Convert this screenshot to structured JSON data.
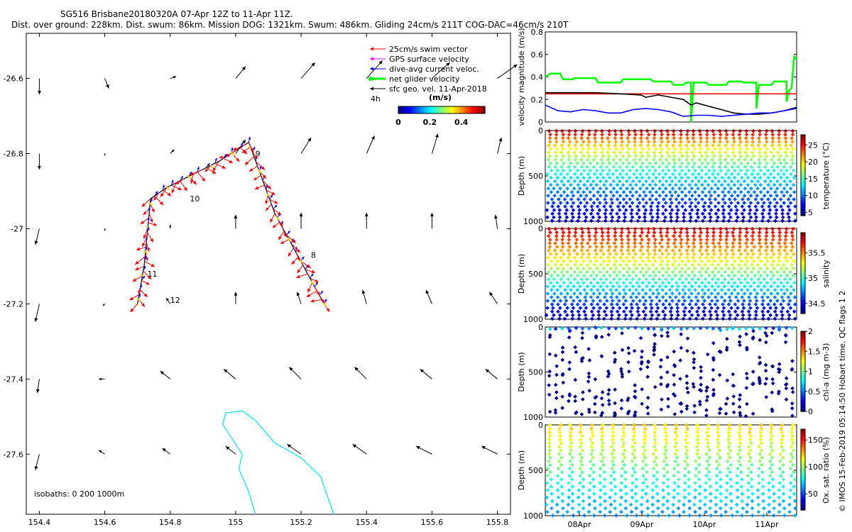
{
  "title": {
    "line1": "SG516 Brisbane20180320A 07-Apr 12Z to 11-Apr 11Z.",
    "line2": "Dist. over ground: 228km. Dist. swum: 86km. Mission DOG: 1321km. Swum: 486km. Gliding 24cm/s 211T COG-DAC=46cm/s 210T"
  },
  "side_note": "© IMOS 15-Feb-2019 05:14:50 Hobart time. QC flags 1  2",
  "chart_data": [
    {
      "id": "map",
      "type": "scatter",
      "xlim": [
        154.36,
        155.84
      ],
      "ylim": [
        -27.76,
        -26.48
      ],
      "xticks": [
        154.4,
        154.6,
        154.8,
        155,
        155.2,
        155.4,
        155.6,
        155.8
      ],
      "yticks": [
        -26.6,
        -26.8,
        -27,
        -27.2,
        -27.4,
        -27.6
      ],
      "xtick_labels": [
        "154.4",
        "154.6",
        "154.8",
        "155",
        "155.2",
        "155.4",
        "155.6",
        "155.8"
      ],
      "ytick_labels": [
        "-26.6",
        "-26.8",
        "-27",
        "-27.2",
        "-27.4",
        "-27.6"
      ],
      "legend": {
        "entries": [
          {
            "label": "25cm/s swim vector",
            "color": "#ff0000"
          },
          {
            "label": "GPS surface velocity",
            "color": "#ff00ff"
          },
          {
            "label": "dive-avg current veloc.",
            "color": "#0000ff"
          },
          {
            "label": "net glider velocity",
            "color": "#00ff00"
          },
          {
            "label": "sfc geo. vel. 11-Apr-2018",
            "color": "#000000"
          }
        ],
        "extra": "4h",
        "colorbar_title": "(m/s)",
        "colorbar_ticks": [
          "0",
          "0.2",
          "0.4"
        ],
        "colorbar_range": [
          0,
          0.55
        ]
      },
      "isobath_note": "isobaths: 0   200  1000m",
      "track_labels": [
        {
          "text": "9",
          "lon": 155.06,
          "lat": -26.8
        },
        {
          "text": "10",
          "lon": 154.86,
          "lat": -26.92
        },
        {
          "text": "8",
          "lon": 155.23,
          "lat": -27.07
        },
        {
          "text": "11",
          "lon": 154.73,
          "lat": -27.12
        },
        {
          "text": "12",
          "lon": 154.8,
          "lat": -27.19
        }
      ],
      "track": [
        {
          "lon": 155.27,
          "lat": -27.2
        },
        {
          "lon": 155.12,
          "lat": -26.96
        },
        {
          "lon": 155.04,
          "lat": -26.77
        },
        {
          "lon": 154.95,
          "lat": -26.82
        },
        {
          "lon": 154.79,
          "lat": -26.89
        },
        {
          "lon": 154.74,
          "lat": -26.92
        },
        {
          "lon": 154.72,
          "lat": -27.1
        },
        {
          "lon": 154.7,
          "lat": -27.2
        }
      ],
      "geo_vectors": {
        "lons": [
          154.4,
          154.6,
          154.8,
          155.0,
          155.2,
          155.4,
          155.6,
          155.8
        ],
        "lats": [
          -26.6,
          -26.8,
          -27.0,
          -27.2,
          -27.4,
          -27.6
        ],
        "u": [
          [
            0.0,
            0.02,
            0.03,
            0.05,
            0.07,
            0.08,
            0.09,
            0.1
          ],
          [
            0.0,
            0.0,
            0.02,
            0.05,
            0.05,
            0.04,
            0.03,
            0.02
          ],
          [
            -0.02,
            0.0,
            0.0,
            0.0,
            0.0,
            0.0,
            0.0,
            -0.01
          ],
          [
            -0.02,
            -0.01,
            -0.02,
            0.0,
            -0.02,
            -0.02,
            -0.03,
            -0.04
          ],
          [
            -0.01,
            -0.03,
            -0.05,
            -0.06,
            -0.06,
            -0.06,
            -0.06,
            -0.06
          ],
          [
            -0.02,
            -0.03,
            -0.04,
            -0.05,
            -0.07,
            -0.07,
            -0.08,
            -0.08
          ]
        ],
        "v": [
          [
            -0.08,
            -0.05,
            0.01,
            0.06,
            0.08,
            0.09,
            0.08,
            0.07
          ],
          [
            -0.08,
            -0.01,
            0.02,
            0.07,
            0.08,
            0.09,
            0.1,
            0.08
          ],
          [
            -0.08,
            -0.01,
            0.02,
            0.07,
            0.08,
            0.08,
            0.08,
            0.07
          ],
          [
            -0.09,
            -0.01,
            0.03,
            0.06,
            0.06,
            0.07,
            0.07,
            0.06
          ],
          [
            -0.07,
            0.0,
            0.04,
            0.05,
            0.06,
            0.06,
            0.05,
            0.05
          ],
          [
            -0.08,
            0.02,
            0.03,
            0.04,
            0.05,
            0.05,
            0.04,
            0.04
          ]
        ]
      },
      "isobath_1000m": [
        {
          "lon": 155.3,
          "lat": -27.76
        },
        {
          "lon": 155.26,
          "lat": -27.66
        },
        {
          "lon": 155.2,
          "lat": -27.61
        },
        {
          "lon": 155.12,
          "lat": -27.57
        },
        {
          "lon": 155.06,
          "lat": -27.51
        },
        {
          "lon": 155.02,
          "lat": -27.485
        },
        {
          "lon": 154.97,
          "lat": -27.49
        },
        {
          "lon": 154.96,
          "lat": -27.52
        },
        {
          "lon": 154.99,
          "lat": -27.56
        },
        {
          "lon": 155.02,
          "lat": -27.6
        },
        {
          "lon": 155.01,
          "lat": -27.64
        },
        {
          "lon": 155.04,
          "lat": -27.7
        },
        {
          "lon": 155.06,
          "lat": -27.76
        }
      ]
    },
    {
      "id": "velocity",
      "type": "line",
      "ylabel": "velocity magnitude (m/s)",
      "ylim": [
        0,
        0.8
      ],
      "yticks": [
        0,
        0.2,
        0.4,
        0.6,
        0.8
      ],
      "ytick_labels": [
        "0",
        "0.2",
        "0.4",
        "0.6",
        "0.8"
      ],
      "xlim": [
        0,
        1
      ],
      "series": [
        {
          "name": "net glider velocity",
          "color": "#00ff00",
          "x": [
            0,
            0.02,
            0.06,
            0.07,
            0.11,
            0.115,
            0.2,
            0.21,
            0.3,
            0.31,
            0.42,
            0.43,
            0.5,
            0.51,
            0.55,
            0.56,
            0.58,
            0.58,
            0.59,
            0.64,
            0.65,
            0.72,
            0.73,
            0.78,
            0.79,
            0.84,
            0.84,
            0.85,
            0.9,
            0.91,
            0.96,
            0.96,
            0.97,
            0.98,
            0.99,
            1.0
          ],
          "values": [
            0.4,
            0.43,
            0.43,
            0.38,
            0.38,
            0.39,
            0.39,
            0.35,
            0.35,
            0.38,
            0.38,
            0.36,
            0.36,
            0.33,
            0.33,
            0.35,
            0.35,
            0.0,
            0.35,
            0.35,
            0.33,
            0.33,
            0.36,
            0.36,
            0.35,
            0.35,
            0.12,
            0.33,
            0.33,
            0.36,
            0.36,
            0.18,
            0.28,
            0.3,
            0.58,
            0.56
          ]
        },
        {
          "name": "25cm/s swim vector",
          "color": "#ff0000",
          "x": [
            0,
            1
          ],
          "values": [
            0.25,
            0.25
          ]
        },
        {
          "name": "sfc geo. vel.",
          "color": "#000000",
          "x": [
            0,
            0.1,
            0.2,
            0.3,
            0.38,
            0.4,
            0.45,
            0.5,
            0.55,
            0.58,
            0.6,
            0.65,
            0.7,
            0.75,
            0.8,
            0.85,
            0.9,
            0.95,
            1.0
          ],
          "values": [
            0.26,
            0.26,
            0.26,
            0.25,
            0.24,
            0.22,
            0.24,
            0.22,
            0.2,
            0.15,
            0.17,
            0.14,
            0.11,
            0.08,
            0.07,
            0.07,
            0.08,
            0.1,
            0.13
          ]
        },
        {
          "name": "dive-avg current veloc.",
          "color": "#0000ff",
          "x": [
            0,
            0.05,
            0.1,
            0.15,
            0.2,
            0.25,
            0.3,
            0.35,
            0.4,
            0.45,
            0.5,
            0.55,
            0.6,
            0.65,
            0.7,
            0.75,
            0.8,
            0.85,
            0.9,
            0.95,
            1.0
          ],
          "values": [
            0.15,
            0.1,
            0.09,
            0.11,
            0.1,
            0.08,
            0.08,
            0.11,
            0.12,
            0.11,
            0.09,
            0.05,
            0.06,
            0.06,
            0.05,
            0.06,
            0.07,
            0.08,
            0.08,
            0.1,
            0.12
          ]
        }
      ]
    },
    {
      "id": "temperature",
      "type": "scatter",
      "ylabel": "Depth (m)",
      "ylim": [
        0,
        1000
      ],
      "yticks": [
        0,
        500,
        1000
      ],
      "ytick_labels": [
        "0",
        "500",
        "1000"
      ],
      "colorbar_label": "temperature (°C)",
      "clim": [
        4,
        28
      ],
      "colorbar_ticks": [
        5,
        10,
        15,
        20,
        25
      ],
      "colorbar_tick_labels": [
        "5",
        "10",
        "15",
        "20",
        "25"
      ],
      "dives": 38
    },
    {
      "id": "salinity",
      "type": "scatter",
      "ylabel": "Depth (m)",
      "ylim": [
        0,
        1000
      ],
      "yticks": [
        0,
        500,
        1000
      ],
      "ytick_labels": [
        "0",
        "500",
        "1000"
      ],
      "colorbar_label": "salinity",
      "clim": [
        34.3,
        35.9
      ],
      "colorbar_ticks": [
        34.5,
        35,
        35.5
      ],
      "colorbar_tick_labels": [
        "34.5",
        "35",
        "35.5"
      ],
      "dives": 38
    },
    {
      "id": "chla",
      "type": "scatter",
      "ylabel": "Depth (m)",
      "ylim": [
        0,
        1000
      ],
      "yticks": [
        0,
        500,
        1000
      ],
      "ytick_labels": [
        "0",
        "500",
        "1000"
      ],
      "colorbar_label": "chl-a (mg m-3)",
      "clim": [
        0,
        2
      ],
      "colorbar_ticks": [
        0,
        0.5,
        1,
        1.5,
        2
      ],
      "colorbar_tick_labels": [
        "0",
        "0.5",
        "1",
        "1.5",
        "2"
      ]
    },
    {
      "id": "oxygen",
      "type": "scatter",
      "ylabel": "Depth (m)",
      "ylim": [
        0,
        1000
      ],
      "yticks": [
        0,
        500,
        1000
      ],
      "ytick_labels": [
        "0",
        "500",
        "1000"
      ],
      "colorbar_label": "Ox. sat. ratio (%)",
      "clim": [
        20,
        170
      ],
      "colorbar_ticks": [
        50,
        100,
        150
      ],
      "colorbar_tick_labels": [
        "50",
        "100",
        "150"
      ],
      "xticks": [
        "08Apr",
        "09Apr",
        "10Apr",
        "11Apr"
      ]
    }
  ]
}
